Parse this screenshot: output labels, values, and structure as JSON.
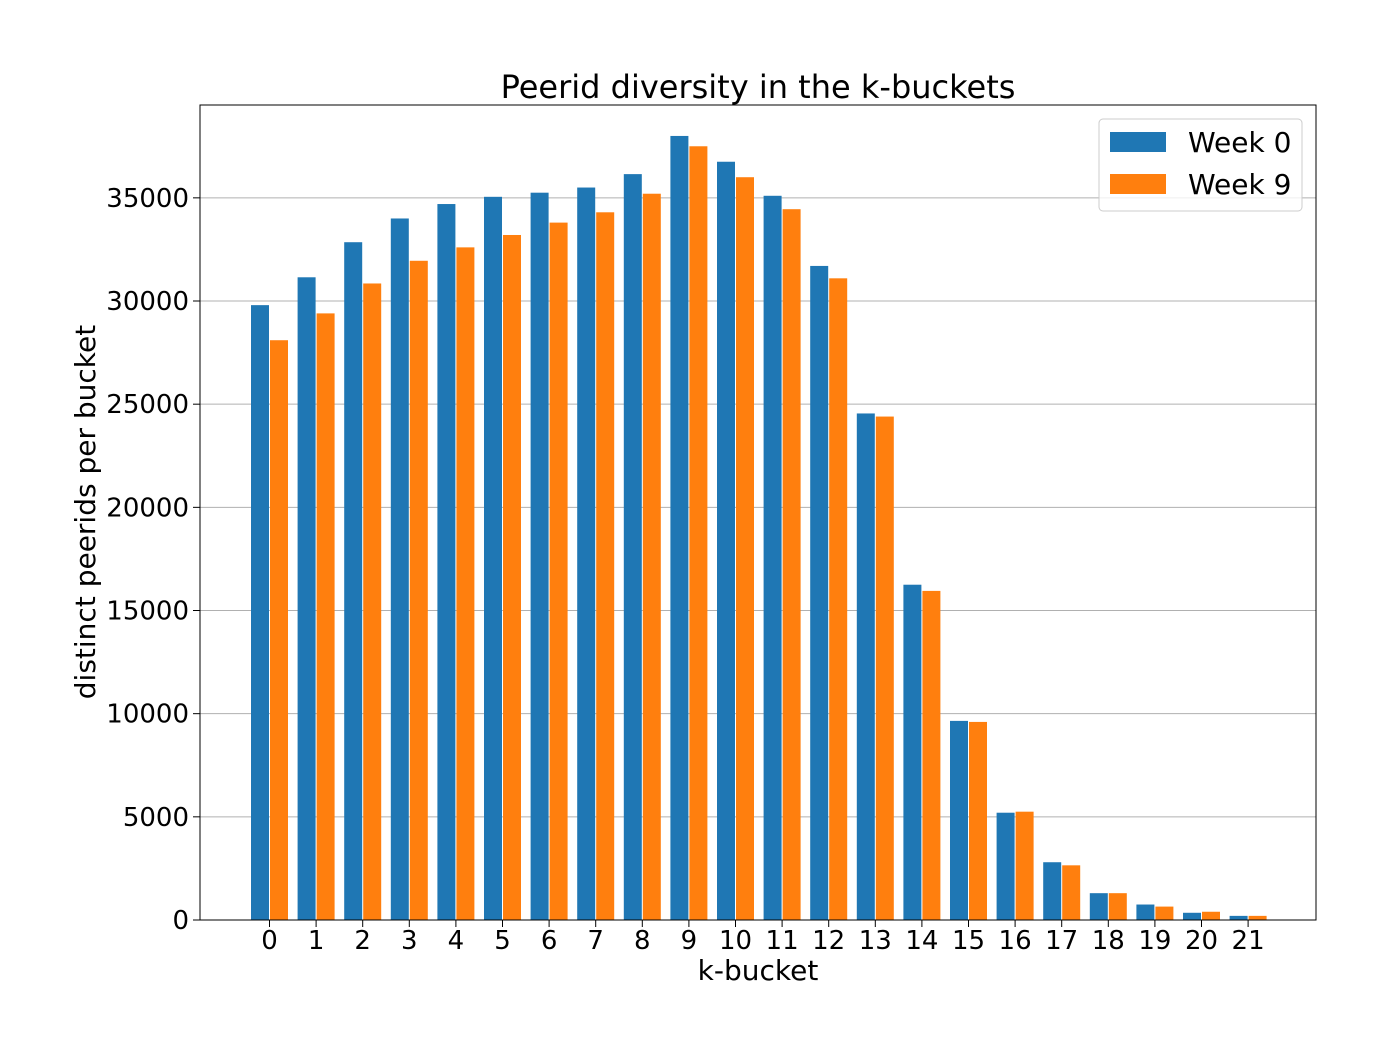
{
  "chart_data": {
    "type": "bar",
    "title": "Peerid diversity in the k-buckets",
    "xlabel": "k-bucket",
    "ylabel": "distinct peerids per bucket",
    "categories": [
      "0",
      "1",
      "2",
      "3",
      "4",
      "5",
      "6",
      "7",
      "8",
      "9",
      "10",
      "11",
      "12",
      "13",
      "14",
      "15",
      "16",
      "17",
      "18",
      "19",
      "20",
      "21"
    ],
    "ylim": [
      0,
      39500
    ],
    "yticks": [
      "0",
      "5000",
      "10000",
      "15000",
      "20000",
      "25000",
      "30000",
      "35000"
    ],
    "grid": "horizontal",
    "legend_position": "top-right",
    "series": [
      {
        "name": "Week 0",
        "color": "#1f77b4",
        "values": [
          29800,
          31150,
          32850,
          34000,
          34700,
          35050,
          35250,
          35500,
          36150,
          38000,
          36750,
          35100,
          31700,
          24550,
          16250,
          9650,
          5200,
          2800,
          1300,
          750,
          350,
          200
        ]
      },
      {
        "name": "Week 9",
        "color": "#ff7f0e",
        "values": [
          28100,
          29400,
          30850,
          31950,
          32600,
          33200,
          33800,
          34300,
          35200,
          37500,
          36000,
          34450,
          31100,
          24400,
          15950,
          9600,
          5250,
          2650,
          1300,
          650,
          400,
          200
        ]
      }
    ]
  }
}
